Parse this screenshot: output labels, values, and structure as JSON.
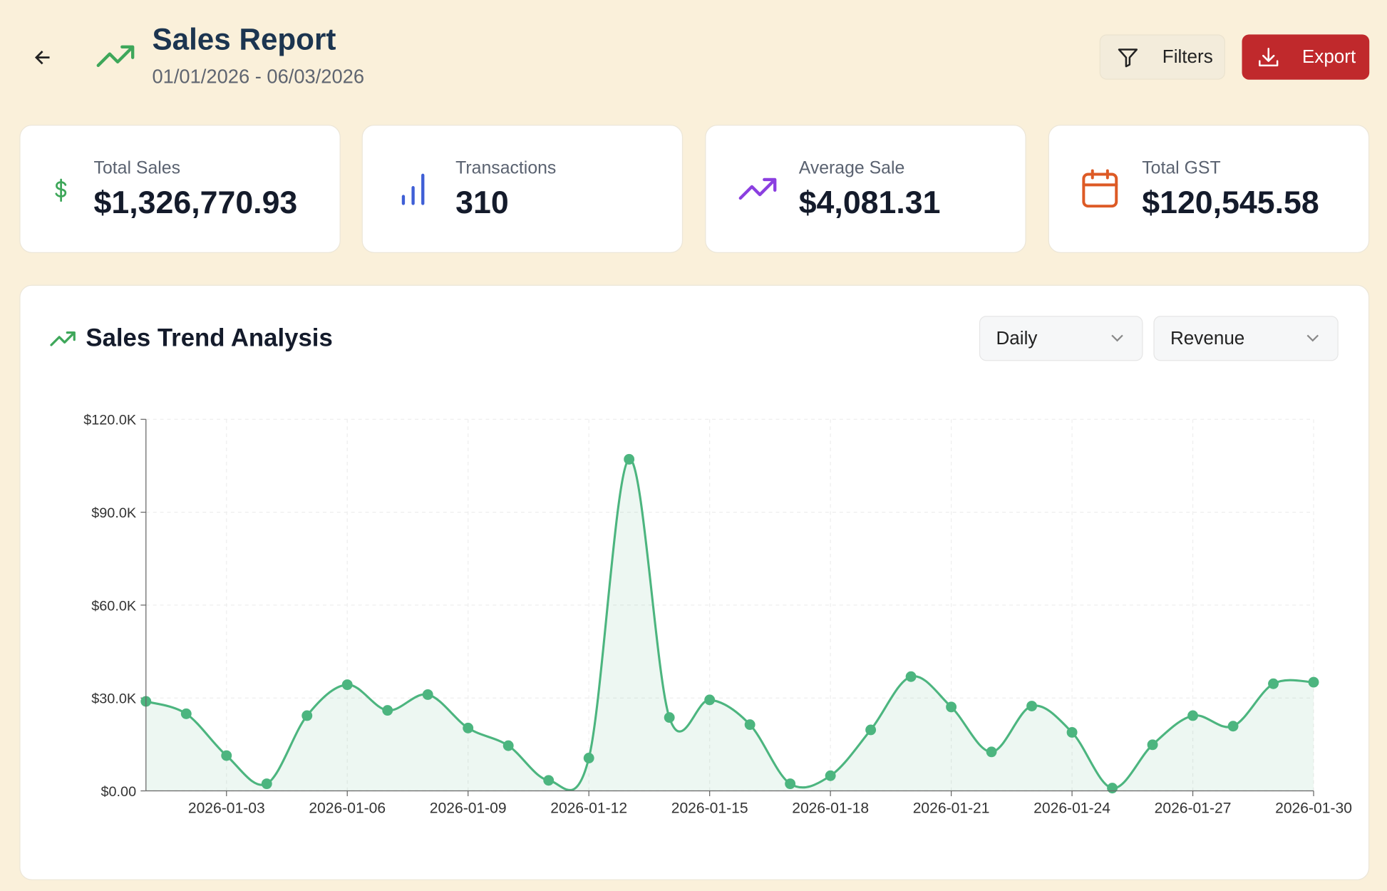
{
  "header": {
    "title": "Sales Report",
    "date_range": "01/01/2026 - 06/03/2026",
    "filters_button": "Filters",
    "export_button": "Export"
  },
  "stats": [
    {
      "label": "Total Sales",
      "value": "$1,326,770.93"
    },
    {
      "label": "Transactions",
      "value": "310"
    },
    {
      "label": "Average Sale",
      "value": "$4,081.31"
    },
    {
      "label": "Total GST",
      "value": "$120,545.58"
    }
  ],
  "controls": {
    "period": "Daily",
    "metric": "Revenue"
  },
  "chart_data": {
    "type": "area",
    "title": "Sales Trend Analysis",
    "color": "#4cb57f",
    "grid": true,
    "x": [
      "2026-01-01",
      "2026-01-02",
      "2026-01-03",
      "2026-01-04",
      "2026-01-05",
      "2026-01-06",
      "2026-01-07",
      "2026-01-08",
      "2026-01-09",
      "2026-01-10",
      "2026-01-11",
      "2026-01-12",
      "2026-01-13",
      "2026-01-14",
      "2026-01-15",
      "2026-01-16",
      "2026-01-17",
      "2026-01-18",
      "2026-01-19",
      "2026-01-20",
      "2026-01-21",
      "2026-01-22",
      "2026-01-23",
      "2026-01-24",
      "2026-01-25",
      "2026-01-26",
      "2026-01-27",
      "2026-01-28",
      "2026-01-29",
      "2026-01-30"
    ],
    "values": [
      28900,
      24900,
      11400,
      2300,
      24300,
      34300,
      26000,
      31100,
      20300,
      14600,
      3400,
      10600,
      107100,
      23700,
      29400,
      21400,
      2300,
      4900,
      19700,
      36900,
      27100,
      12600,
      27400,
      18900,
      900,
      14900,
      24300,
      20900,
      34600,
      35100
    ],
    "xlim": [
      "2026-01-01",
      "2026-01-30"
    ],
    "xticks": [
      "2026-01-03",
      "2026-01-06",
      "2026-01-09",
      "2026-01-12",
      "2026-01-15",
      "2026-01-18",
      "2026-01-21",
      "2026-01-24",
      "2026-01-27",
      "2026-01-30"
    ],
    "ylim": [
      0,
      120000
    ],
    "yticks": [
      {
        "value": 0,
        "label": "$0.00"
      },
      {
        "value": 30000,
        "label": "$30.0K"
      },
      {
        "value": 60000,
        "label": "$60.0K"
      },
      {
        "value": 90000,
        "label": "$90.0K"
      },
      {
        "value": 120000,
        "label": "$120.0K"
      }
    ]
  }
}
